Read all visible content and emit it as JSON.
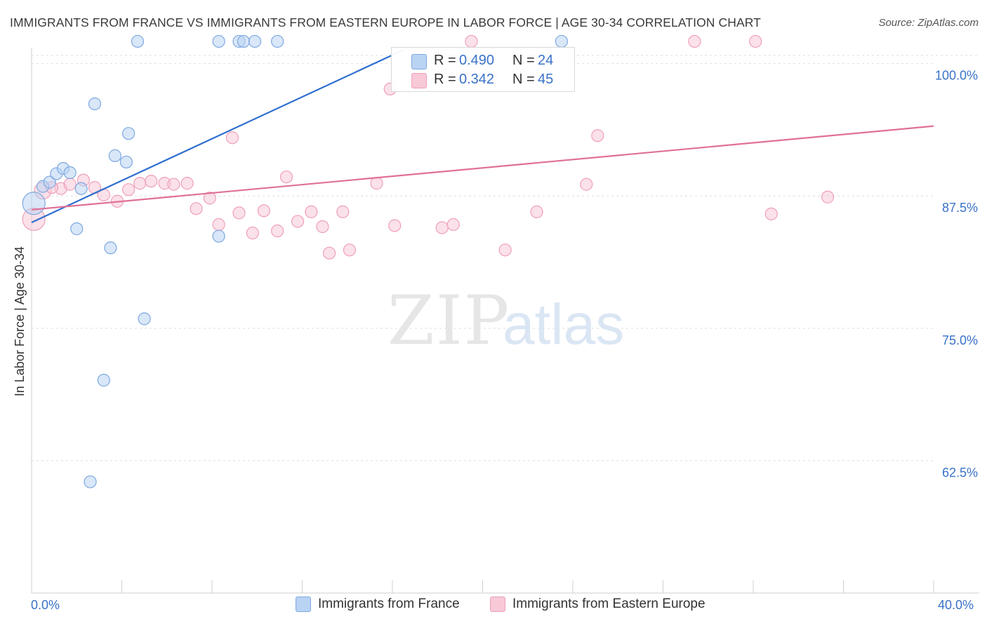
{
  "title": "IMMIGRANTS FROM FRANCE VS IMMIGRANTS FROM EASTERN EUROPE IN LABOR FORCE | AGE 30-34 CORRELATION CHART",
  "source": "Source: ZipAtlas.com",
  "watermark": {
    "zip": "ZIP",
    "atlas": "atlas"
  },
  "stats_legend": {
    "r_label": "R =",
    "n_label": "N =",
    "france": {
      "r": "0.490",
      "n": "24"
    },
    "eastern_europe": {
      "r": "0.342",
      "n": "45"
    }
  },
  "bottom_legend": {
    "france": "Immigrants from France",
    "eastern_europe": "Immigrants from Eastern Europe"
  },
  "x_axis_labels": {
    "min": "0.0%",
    "max": "40.0%"
  },
  "colors": {
    "france_fill": "#b9d3f3",
    "france_stroke": "#7ea9e0",
    "france_line": "#2f6fcf",
    "ee_fill": "#f8c9d7",
    "ee_stroke": "#eea0b8",
    "ee_line": "#e07097",
    "axis_text": "#3a72c8",
    "grid": "#dddddd"
  },
  "chart_data": {
    "type": "scatter",
    "title": "IMMIGRANTS FROM FRANCE VS IMMIGRANTS FROM EASTERN EUROPE IN LABOR FORCE | AGE 30-34 CORRELATION CHART",
    "xlabel": "",
    "ylabel": "In Labor Force | Age 30-34",
    "xlim": [
      0,
      40
    ],
    "ylim": [
      50,
      101.5
    ],
    "y_ticks": [
      62.5,
      75.0,
      87.5,
      100.0
    ],
    "y_tick_labels": [
      "62.5%",
      "75.0%",
      "87.5%",
      "100.0%"
    ],
    "x_tick_labels": [
      "0.0%",
      "40.0%"
    ],
    "grid": true,
    "legend": "top-center",
    "series": [
      {
        "name": "Immigrants from France",
        "r": 0.49,
        "n": 24,
        "trend": {
          "x": [
            0.0,
            16.5
          ],
          "y": [
            85.0,
            101.3
          ]
        },
        "points": [
          {
            "x": 0.1,
            "y": 86.8,
            "s": "l"
          },
          {
            "x": 0.5,
            "y": 88.4
          },
          {
            "x": 0.8,
            "y": 88.8
          },
          {
            "x": 1.1,
            "y": 89.6
          },
          {
            "x": 1.4,
            "y": 90.1
          },
          {
            "x": 1.7,
            "y": 89.7
          },
          {
            "x": 2.2,
            "y": 88.2
          },
          {
            "x": 2.0,
            "y": 84.4
          },
          {
            "x": 2.8,
            "y": 96.2
          },
          {
            "x": 3.5,
            "y": 82.6
          },
          {
            "x": 3.2,
            "y": 70.1
          },
          {
            "x": 2.6,
            "y": 60.5
          },
          {
            "x": 3.7,
            "y": 91.3
          },
          {
            "x": 4.2,
            "y": 90.7
          },
          {
            "x": 4.3,
            "y": 93.4
          },
          {
            "x": 4.7,
            "y": 102.1
          },
          {
            "x": 5.0,
            "y": 75.9
          },
          {
            "x": 8.3,
            "y": 102.1
          },
          {
            "x": 8.3,
            "y": 83.7
          },
          {
            "x": 9.2,
            "y": 102.1
          },
          {
            "x": 9.4,
            "y": 102.1
          },
          {
            "x": 9.9,
            "y": 102.1
          },
          {
            "x": 10.9,
            "y": 102.1
          },
          {
            "x": 23.5,
            "y": 102.1
          }
        ]
      },
      {
        "name": "Immigrants from Eastern Europe",
        "r": 0.342,
        "n": 45,
        "trend": {
          "x": [
            0.0,
            40.0
          ],
          "y": [
            86.2,
            94.1
          ]
        },
        "points": [
          {
            "x": 0.1,
            "y": 85.3,
            "s": "l"
          },
          {
            "x": 0.5,
            "y": 88.0,
            "s": "m"
          },
          {
            "x": 1.3,
            "y": 88.2
          },
          {
            "x": 1.7,
            "y": 88.6
          },
          {
            "x": 2.3,
            "y": 89.0
          },
          {
            "x": 2.8,
            "y": 88.3
          },
          {
            "x": 3.2,
            "y": 87.6
          },
          {
            "x": 3.8,
            "y": 87.0
          },
          {
            "x": 4.3,
            "y": 88.1
          },
          {
            "x": 4.8,
            "y": 88.7
          },
          {
            "x": 5.3,
            "y": 88.9
          },
          {
            "x": 5.9,
            "y": 88.7
          },
          {
            "x": 6.3,
            "y": 88.6
          },
          {
            "x": 6.9,
            "y": 88.7
          },
          {
            "x": 7.3,
            "y": 86.3
          },
          {
            "x": 7.9,
            "y": 87.3
          },
          {
            "x": 8.3,
            "y": 84.8
          },
          {
            "x": 8.9,
            "y": 93.0
          },
          {
            "x": 9.2,
            "y": 85.9
          },
          {
            "x": 9.8,
            "y": 84.0
          },
          {
            "x": 10.3,
            "y": 86.1
          },
          {
            "x": 10.9,
            "y": 84.2
          },
          {
            "x": 11.3,
            "y": 89.3
          },
          {
            "x": 11.8,
            "y": 85.1
          },
          {
            "x": 12.4,
            "y": 86.0
          },
          {
            "x": 12.9,
            "y": 84.6
          },
          {
            "x": 13.2,
            "y": 82.1
          },
          {
            "x": 13.8,
            "y": 86.0
          },
          {
            "x": 14.1,
            "y": 82.4
          },
          {
            "x": 15.3,
            "y": 88.7
          },
          {
            "x": 15.9,
            "y": 97.6
          },
          {
            "x": 16.1,
            "y": 84.7
          },
          {
            "x": 18.2,
            "y": 84.5
          },
          {
            "x": 18.7,
            "y": 84.8
          },
          {
            "x": 19.5,
            "y": 102.1
          },
          {
            "x": 20.4,
            "y": 98.7
          },
          {
            "x": 21.0,
            "y": 82.4
          },
          {
            "x": 22.4,
            "y": 86.0
          },
          {
            "x": 24.6,
            "y": 88.6
          },
          {
            "x": 25.1,
            "y": 93.2
          },
          {
            "x": 29.4,
            "y": 102.1
          },
          {
            "x": 32.1,
            "y": 102.1
          },
          {
            "x": 32.8,
            "y": 85.8
          },
          {
            "x": 35.3,
            "y": 87.4
          },
          {
            "x": 0.9,
            "y": 88.3
          }
        ]
      }
    ]
  }
}
